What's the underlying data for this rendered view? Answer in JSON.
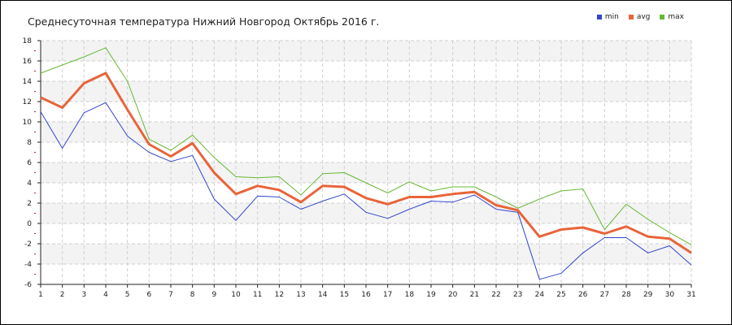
{
  "chart_data": {
    "type": "line",
    "title": "Среднесуточная температура Нижний Новгород  Октябрь 2016 г.",
    "x": [
      1,
      2,
      3,
      4,
      5,
      6,
      7,
      8,
      9,
      10,
      11,
      12,
      13,
      14,
      15,
      16,
      17,
      18,
      19,
      20,
      21,
      22,
      23,
      24,
      25,
      26,
      27,
      28,
      29,
      30,
      31
    ],
    "xlim": [
      1,
      31
    ],
    "ylim": [
      -6,
      18
    ],
    "yticks": [
      -6,
      -4,
      -2,
      0,
      2,
      4,
      6,
      8,
      10,
      12,
      14,
      16,
      18
    ],
    "grid": true,
    "legend_position": "top-right",
    "series": [
      {
        "name": "min",
        "color": "#3344cc",
        "values": [
          11.0,
          7.4,
          10.9,
          11.9,
          8.6,
          7.0,
          6.1,
          6.7,
          2.4,
          0.3,
          2.7,
          2.6,
          1.4,
          2.2,
          2.9,
          1.1,
          0.5,
          1.4,
          2.2,
          2.1,
          2.8,
          1.4,
          1.1,
          -5.5,
          -4.9,
          -2.9,
          -1.4,
          -1.4,
          -2.9,
          -2.2,
          -4.1
        ]
      },
      {
        "name": "avg",
        "color": "#e8643a",
        "values": [
          12.4,
          11.4,
          13.8,
          14.8,
          11.2,
          7.8,
          6.6,
          7.9,
          5.0,
          2.9,
          3.7,
          3.3,
          2.1,
          3.7,
          3.6,
          2.5,
          1.9,
          2.6,
          2.6,
          2.9,
          3.1,
          1.8,
          1.3,
          -1.3,
          -0.6,
          -0.4,
          -1.0,
          -0.3,
          -1.3,
          -1.5,
          -2.9
        ]
      },
      {
        "name": "max",
        "color": "#66b833",
        "values": [
          14.8,
          15.6,
          16.4,
          17.3,
          14.0,
          8.3,
          7.2,
          8.7,
          6.5,
          4.6,
          4.5,
          4.6,
          2.8,
          4.9,
          5.0,
          4.0,
          3.0,
          4.1,
          3.2,
          3.6,
          3.6,
          2.6,
          1.5,
          2.4,
          3.2,
          3.4,
          -0.6,
          1.9,
          0.4,
          -0.9,
          -2.1
        ]
      }
    ]
  }
}
